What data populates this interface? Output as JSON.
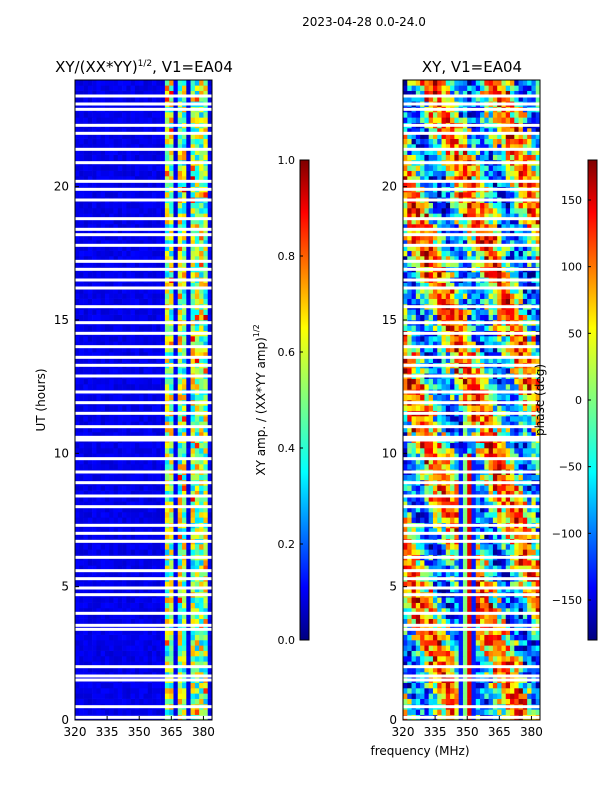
{
  "suptitle": "2023-04-28 0.0-24.0",
  "xlabel": "frequency (MHz)",
  "colors": {
    "background": "#ffffff",
    "colormap": [
      "#00007f",
      "#0000ff",
      "#007fff",
      "#00ffff",
      "#7fff7f",
      "#ffff00",
      "#ff7f00",
      "#ff0000",
      "#7f0000"
    ]
  },
  "chart_data": [
    {
      "type": "heatmap",
      "title_main": "XY/(XX*YY)",
      "title_sup": "1/2",
      "title_rest": ", V1=EA04",
      "ylabel": "UT (hours)",
      "x_ticks": [
        "320",
        "335",
        "350",
        "365",
        "380"
      ],
      "x_tick_values": [
        320,
        335,
        350,
        365,
        380
      ],
      "xlim": [
        320,
        384
      ],
      "y_ticks": [
        "0",
        "5",
        "10",
        "15",
        "20"
      ],
      "y_tick_values": [
        0,
        5,
        10,
        15,
        20
      ],
      "ylim": [
        0,
        24
      ],
      "active_channels_mhz": [
        [
          362,
          366
        ],
        [
          368,
          372
        ],
        [
          374,
          377
        ],
        [
          379,
          382
        ]
      ],
      "colorbar": {
        "label_main": "XY amp. / (XX*YY amp)",
        "label_sup": "1/2",
        "ticks": [
          "0.0",
          "0.2",
          "0.4",
          "0.6",
          "0.8",
          "1.0"
        ],
        "tick_values": [
          0,
          0.2,
          0.4,
          0.6,
          0.8,
          1.0
        ],
        "range": [
          0,
          1
        ]
      }
    },
    {
      "type": "heatmap",
      "title_main": "XY, V1=EA04",
      "ylabel": "",
      "x_ticks": [
        "320",
        "335",
        "350",
        "365",
        "380"
      ],
      "x_tick_values": [
        320,
        335,
        350,
        365,
        380
      ],
      "xlim": [
        320,
        384
      ],
      "y_ticks": [
        "0",
        "5",
        "10",
        "15",
        "20"
      ],
      "y_tick_values": [
        0,
        5,
        10,
        15,
        20
      ],
      "ylim": [
        0,
        24
      ],
      "colorbar": {
        "label_main": "phase (deg)",
        "ticks": [
          "−150",
          "−100",
          "−50",
          "0",
          "50",
          "100",
          "150"
        ],
        "tick_values": [
          -150,
          -100,
          -50,
          0,
          50,
          100,
          150
        ],
        "range": [
          -180,
          180
        ]
      }
    }
  ],
  "flagged_ut_hours": [
    0.1,
    0.5,
    1.5,
    1.65,
    2.0,
    3.4,
    3.55,
    4.0,
    4.7,
    4.95,
    5.3,
    5.6,
    6.1,
    6.7,
    7.0,
    7.3,
    8.0,
    8.4,
    8.9,
    9.3,
    9.8,
    10.5,
    10.6,
    11.0,
    11.5,
    11.9,
    12.3,
    12.9,
    13.3,
    13.6,
    14.0,
    14.5,
    14.9,
    15.5,
    16.2,
    16.5,
    16.9,
    17.2,
    17.8,
    18.2,
    18.4,
    18.8,
    19.5,
    19.9,
    20.2,
    20.9,
    21.4,
    22.0,
    22.3,
    22.9,
    23.1,
    23.4
  ]
}
